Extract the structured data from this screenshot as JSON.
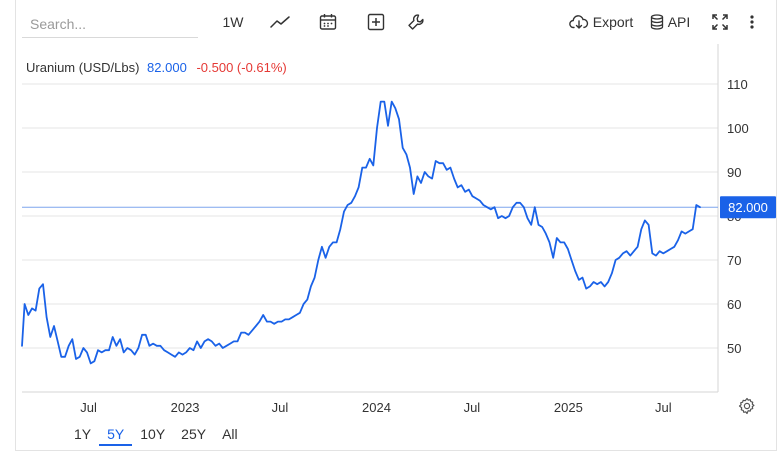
{
  "toolbar": {
    "search_placeholder": "Search...",
    "interval_label": "1W",
    "export_label": "Export",
    "api_label": "API"
  },
  "legend": {
    "name": "Uranium (USD/Lbs)",
    "price": "82.000",
    "change": "-0.500 (-0.61%)"
  },
  "periods": [
    {
      "label": "1Y",
      "active": false
    },
    {
      "label": "5Y",
      "active": true
    },
    {
      "label": "10Y",
      "active": false
    },
    {
      "label": "25Y",
      "active": false
    },
    {
      "label": "All",
      "active": false
    }
  ],
  "colors": {
    "line": "#1a62e8",
    "grid": "#e6e6e6",
    "negative": "#e53935",
    "last_price_bg": "#1a62e8"
  },
  "chart_data": {
    "type": "line",
    "title": "Uranium (USD/Lbs)",
    "xlabel": "",
    "ylabel": "",
    "ylim": [
      40,
      115
    ],
    "grid": true,
    "y_ticks": [
      50,
      60,
      70,
      80,
      90,
      100,
      110
    ],
    "x_ticks": [
      {
        "label": "Jul",
        "date": "2022-07-01"
      },
      {
        "label": "2023",
        "date": "2023-01-01"
      },
      {
        "label": "Jul",
        "date": "2023-07-01"
      },
      {
        "label": "2024",
        "date": "2024-01-01"
      },
      {
        "label": "Jul",
        "date": "2024-07-01"
      },
      {
        "label": "2025",
        "date": "2025-01-01"
      },
      {
        "label": "Jul",
        "date": "2025-07-01"
      }
    ],
    "last_price_label": "82.000",
    "last_value": 82.0,
    "series": [
      {
        "name": "Uranium (USD/Lbs)",
        "points": [
          [
            "2022-02-24",
            50.5
          ],
          [
            "2022-03-01",
            60.0
          ],
          [
            "2022-03-08",
            57.5
          ],
          [
            "2022-03-15",
            59.0
          ],
          [
            "2022-03-22",
            58.5
          ],
          [
            "2022-03-29",
            63.5
          ],
          [
            "2022-04-05",
            64.5
          ],
          [
            "2022-04-12",
            57.0
          ],
          [
            "2022-04-19",
            52.5
          ],
          [
            "2022-04-26",
            55.0
          ],
          [
            "2022-05-03",
            51.5
          ],
          [
            "2022-05-10",
            48.0
          ],
          [
            "2022-05-17",
            48.0
          ],
          [
            "2022-05-24",
            50.5
          ],
          [
            "2022-05-31",
            52.0
          ],
          [
            "2022-06-07",
            47.5
          ],
          [
            "2022-06-14",
            48.0
          ],
          [
            "2022-06-21",
            50.0
          ],
          [
            "2022-06-28",
            49.0
          ],
          [
            "2022-07-05",
            46.5
          ],
          [
            "2022-07-12",
            47.0
          ],
          [
            "2022-07-19",
            49.5
          ],
          [
            "2022-07-26",
            49.0
          ],
          [
            "2022-08-02",
            49.5
          ],
          [
            "2022-08-09",
            49.5
          ],
          [
            "2022-08-16",
            52.5
          ],
          [
            "2022-08-23",
            50.5
          ],
          [
            "2022-08-30",
            52.0
          ],
          [
            "2022-09-06",
            49.0
          ],
          [
            "2022-09-13",
            50.0
          ],
          [
            "2022-09-20",
            49.5
          ],
          [
            "2022-09-27",
            48.5
          ],
          [
            "2022-10-04",
            50.0
          ],
          [
            "2022-10-11",
            53.0
          ],
          [
            "2022-10-18",
            53.0
          ],
          [
            "2022-10-25",
            50.5
          ],
          [
            "2022-11-01",
            51.0
          ],
          [
            "2022-11-08",
            50.5
          ],
          [
            "2022-11-15",
            50.5
          ],
          [
            "2022-11-22",
            49.5
          ],
          [
            "2022-11-29",
            49.0
          ],
          [
            "2022-12-06",
            48.5
          ],
          [
            "2022-12-13",
            48.0
          ],
          [
            "2022-12-20",
            49.0
          ],
          [
            "2022-12-27",
            48.5
          ],
          [
            "2023-01-03",
            49.0
          ],
          [
            "2023-01-10",
            50.0
          ],
          [
            "2023-01-17",
            49.5
          ],
          [
            "2023-01-24",
            51.5
          ],
          [
            "2023-01-31",
            50.0
          ],
          [
            "2023-02-07",
            51.5
          ],
          [
            "2023-02-14",
            52.0
          ],
          [
            "2023-02-21",
            51.5
          ],
          [
            "2023-02-28",
            50.5
          ],
          [
            "2023-03-07",
            51.0
          ],
          [
            "2023-03-14",
            50.0
          ],
          [
            "2023-03-21",
            50.5
          ],
          [
            "2023-03-28",
            51.0
          ],
          [
            "2023-04-04",
            51.5
          ],
          [
            "2023-04-11",
            51.5
          ],
          [
            "2023-04-18",
            53.5
          ],
          [
            "2023-04-25",
            53.5
          ],
          [
            "2023-05-02",
            53.0
          ],
          [
            "2023-05-09",
            54.0
          ],
          [
            "2023-05-16",
            55.0
          ],
          [
            "2023-05-23",
            56.0
          ],
          [
            "2023-05-30",
            57.5
          ],
          [
            "2023-06-06",
            56.0
          ],
          [
            "2023-06-13",
            56.0
          ],
          [
            "2023-06-20",
            55.5
          ],
          [
            "2023-06-27",
            56.0
          ],
          [
            "2023-07-04",
            56.0
          ],
          [
            "2023-07-11",
            56.5
          ],
          [
            "2023-07-18",
            56.5
          ],
          [
            "2023-07-25",
            57.0
          ],
          [
            "2023-08-01",
            57.5
          ],
          [
            "2023-08-08",
            58.0
          ],
          [
            "2023-08-15",
            60.0
          ],
          [
            "2023-08-22",
            61.0
          ],
          [
            "2023-08-29",
            64.0
          ],
          [
            "2023-09-05",
            66.0
          ],
          [
            "2023-09-12",
            70.0
          ],
          [
            "2023-09-19",
            73.0
          ],
          [
            "2023-09-26",
            70.5
          ],
          [
            "2023-10-03",
            73.0
          ],
          [
            "2023-10-10",
            74.0
          ],
          [
            "2023-10-17",
            74.0
          ],
          [
            "2023-10-24",
            77.0
          ],
          [
            "2023-10-31",
            81.0
          ],
          [
            "2023-11-07",
            82.5
          ],
          [
            "2023-11-14",
            83.0
          ],
          [
            "2023-11-21",
            84.5
          ],
          [
            "2023-11-28",
            86.5
          ],
          [
            "2023-12-05",
            91.0
          ],
          [
            "2023-12-12",
            91.0
          ],
          [
            "2023-12-19",
            93.0
          ],
          [
            "2023-12-26",
            91.5
          ],
          [
            "2024-01-02",
            100.0
          ],
          [
            "2024-01-09",
            106.0
          ],
          [
            "2024-01-16",
            106.0
          ],
          [
            "2024-01-23",
            100.5
          ],
          [
            "2024-01-30",
            106.0
          ],
          [
            "2024-02-06",
            104.5
          ],
          [
            "2024-02-13",
            102.0
          ],
          [
            "2024-02-20",
            95.5
          ],
          [
            "2024-02-27",
            94.0
          ],
          [
            "2024-03-05",
            91.0
          ],
          [
            "2024-03-12",
            85.0
          ],
          [
            "2024-03-19",
            89.0
          ],
          [
            "2024-03-26",
            87.5
          ],
          [
            "2024-04-02",
            90.0
          ],
          [
            "2024-04-09",
            89.0
          ],
          [
            "2024-04-16",
            88.5
          ],
          [
            "2024-04-23",
            92.5
          ],
          [
            "2024-04-30",
            92.0
          ],
          [
            "2024-05-07",
            92.0
          ],
          [
            "2024-05-14",
            90.5
          ],
          [
            "2024-05-21",
            91.0
          ],
          [
            "2024-05-28",
            88.5
          ],
          [
            "2024-06-04",
            86.5
          ],
          [
            "2024-06-11",
            87.0
          ],
          [
            "2024-06-18",
            85.5
          ],
          [
            "2024-06-25",
            86.0
          ],
          [
            "2024-07-02",
            84.5
          ],
          [
            "2024-07-09",
            84.0
          ],
          [
            "2024-07-16",
            83.5
          ],
          [
            "2024-07-23",
            82.5
          ],
          [
            "2024-07-30",
            82.0
          ],
          [
            "2024-08-06",
            81.5
          ],
          [
            "2024-08-13",
            82.0
          ],
          [
            "2024-08-20",
            79.5
          ],
          [
            "2024-08-27",
            80.0
          ],
          [
            "2024-09-03",
            79.5
          ],
          [
            "2024-09-10",
            80.0
          ],
          [
            "2024-09-17",
            82.0
          ],
          [
            "2024-09-24",
            83.0
          ],
          [
            "2024-10-01",
            83.0
          ],
          [
            "2024-10-08",
            82.0
          ],
          [
            "2024-10-15",
            79.5
          ],
          [
            "2024-10-22",
            78.0
          ],
          [
            "2024-10-29",
            82.0
          ],
          [
            "2024-11-05",
            78.0
          ],
          [
            "2024-11-12",
            77.5
          ],
          [
            "2024-11-19",
            76.0
          ],
          [
            "2024-11-26",
            74.0
          ],
          [
            "2024-12-03",
            70.5
          ],
          [
            "2024-12-10",
            75.0
          ],
          [
            "2024-12-17",
            74.0
          ],
          [
            "2024-12-24",
            74.0
          ],
          [
            "2024-12-31",
            72.5
          ],
          [
            "2025-01-07",
            70.0
          ],
          [
            "2025-01-14",
            67.5
          ],
          [
            "2025-01-21",
            65.5
          ],
          [
            "2025-01-28",
            66.0
          ],
          [
            "2025-02-04",
            63.5
          ],
          [
            "2025-02-11",
            64.0
          ],
          [
            "2025-02-18",
            65.0
          ],
          [
            "2025-02-25",
            64.5
          ],
          [
            "2025-03-04",
            65.0
          ],
          [
            "2025-03-11",
            64.0
          ],
          [
            "2025-03-18",
            65.0
          ],
          [
            "2025-03-25",
            67.0
          ],
          [
            "2025-04-01",
            70.0
          ],
          [
            "2025-04-08",
            70.5
          ],
          [
            "2025-04-15",
            71.5
          ],
          [
            "2025-04-22",
            72.0
          ],
          [
            "2025-04-29",
            71.0
          ],
          [
            "2025-05-06",
            72.0
          ],
          [
            "2025-05-13",
            73.0
          ],
          [
            "2025-05-20",
            77.0
          ],
          [
            "2025-05-27",
            79.0
          ],
          [
            "2025-06-03",
            78.0
          ],
          [
            "2025-06-10",
            71.5
          ],
          [
            "2025-06-17",
            71.0
          ],
          [
            "2025-06-24",
            72.0
          ],
          [
            "2025-07-01",
            71.5
          ],
          [
            "2025-07-08",
            72.0
          ],
          [
            "2025-07-15",
            72.5
          ],
          [
            "2025-07-22",
            73.0
          ],
          [
            "2025-07-29",
            74.5
          ],
          [
            "2025-08-05",
            76.5
          ],
          [
            "2025-08-12",
            76.0
          ],
          [
            "2025-08-19",
            76.5
          ],
          [
            "2025-08-26",
            77.0
          ],
          [
            "2025-09-02",
            82.5
          ],
          [
            "2025-09-09",
            82.0
          ]
        ]
      }
    ]
  }
}
